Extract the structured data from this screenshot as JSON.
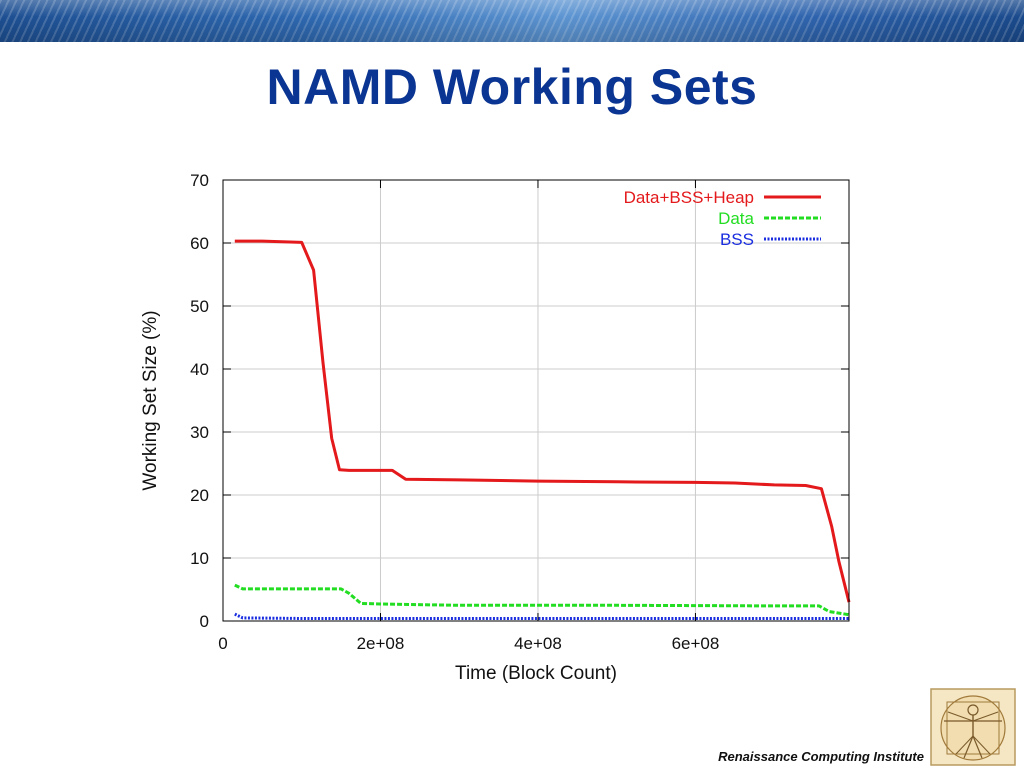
{
  "slide": {
    "title": "NAMD Working Sets",
    "footer": "Renaissance Computing Institute"
  },
  "colors": {
    "title": "#0b3592",
    "series_heap": "#e3191b",
    "series_data": "#22dd22",
    "series_bss": "#1a2ee0"
  },
  "chart_data": {
    "type": "line",
    "xlabel": "Time (Block Count)",
    "ylabel": "Working Set Size (%)",
    "xlim": [
      0,
      795000000
    ],
    "ylim": [
      0,
      70
    ],
    "x_ticks": [
      0,
      200000000,
      400000000,
      600000000
    ],
    "x_tick_labels": [
      "0",
      "2e+08",
      "4e+08",
      "6e+08"
    ],
    "y_ticks": [
      0,
      10,
      20,
      30,
      40,
      50,
      60,
      70
    ],
    "y_tick_labels": [
      "0",
      "10",
      "20",
      "30",
      "40",
      "50",
      "60",
      "70"
    ],
    "grid": true,
    "legend_position": "top-right",
    "series": [
      {
        "name": "Data+BSS+Heap",
        "color": "#e3191b",
        "style": "solid",
        "points": [
          [
            15000000,
            60.3
          ],
          [
            50000000,
            60.3
          ],
          [
            100000000,
            60.1
          ],
          [
            115000000,
            55.7
          ],
          [
            127000000,
            41
          ],
          [
            138000000,
            29
          ],
          [
            148000000,
            24
          ],
          [
            160000000,
            23.9
          ],
          [
            200000000,
            23.9
          ],
          [
            215000000,
            23.9
          ],
          [
            232000000,
            22.5
          ],
          [
            300000000,
            22.4
          ],
          [
            400000000,
            22.2
          ],
          [
            500000000,
            22.1
          ],
          [
            600000000,
            22.0
          ],
          [
            650000000,
            21.9
          ],
          [
            700000000,
            21.6
          ],
          [
            740000000,
            21.5
          ],
          [
            760000000,
            21.0
          ],
          [
            773000000,
            15
          ],
          [
            782000000,
            9.5
          ],
          [
            795000000,
            3.0
          ]
        ]
      },
      {
        "name": "Data",
        "color": "#22dd22",
        "style": "dashed",
        "points": [
          [
            15000000,
            5.7
          ],
          [
            25000000,
            5.1
          ],
          [
            100000000,
            5.1
          ],
          [
            150000000,
            5.1
          ],
          [
            160000000,
            4.4
          ],
          [
            175000000,
            2.8
          ],
          [
            200000000,
            2.7
          ],
          [
            300000000,
            2.5
          ],
          [
            500000000,
            2.5
          ],
          [
            700000000,
            2.4
          ],
          [
            757000000,
            2.4
          ],
          [
            770000000,
            1.5
          ],
          [
            795000000,
            1.0
          ]
        ]
      },
      {
        "name": "BSS",
        "color": "#1a2ee0",
        "style": "dotted",
        "points": [
          [
            15000000,
            1.1
          ],
          [
            25000000,
            0.5
          ],
          [
            100000000,
            0.4
          ],
          [
            500000000,
            0.4
          ],
          [
            795000000,
            0.4
          ]
        ]
      }
    ]
  }
}
